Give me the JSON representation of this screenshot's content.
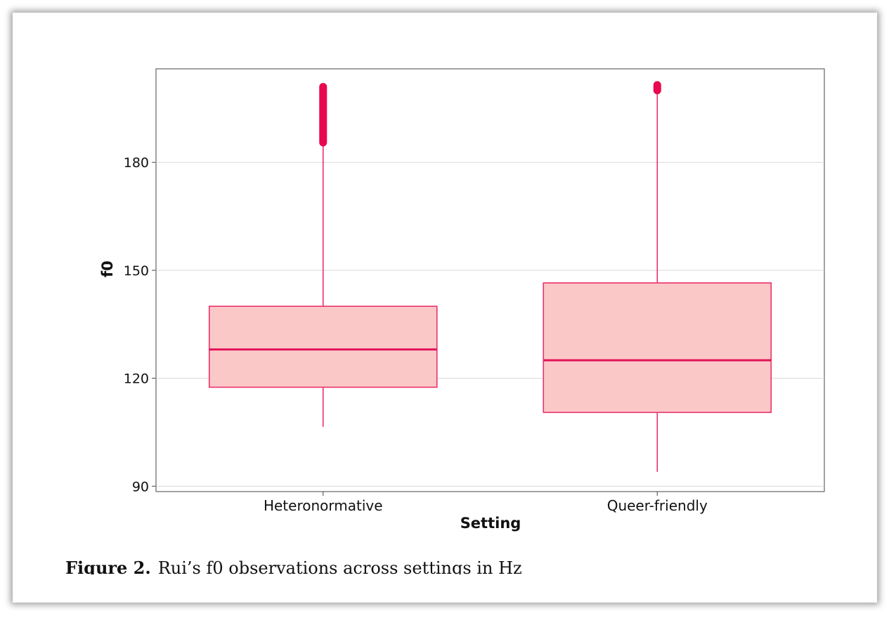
{
  "caption": {
    "label": "Figure 2.",
    "text": "Rui’s f0 observations across settings in Hz"
  },
  "chart_data": {
    "type": "boxplot",
    "title": "",
    "xlabel": "Setting",
    "ylabel": "f0",
    "ylim": [
      88.5,
      206
    ],
    "yticks": [
      90,
      120,
      150,
      180
    ],
    "grid": true,
    "categories": [
      "Heteronormative",
      "Queer-friendly"
    ],
    "boxes": [
      {
        "category": "Heteronormative",
        "whisker_low": 106.5,
        "q1": 117.5,
        "median": 128,
        "q3": 140,
        "whisker_high": 185.5,
        "outliers_range": [
          185.5,
          201
        ]
      },
      {
        "category": "Queer-friendly",
        "whisker_low": 94,
        "q1": 110.5,
        "median": 125,
        "q3": 146.5,
        "whisker_high": 200,
        "outliers_range": [
          200,
          201.5
        ]
      }
    ],
    "colors": {
      "box_fill": "#fbc8c8",
      "box_stroke": "#e8336b",
      "median": "#e0155a",
      "outlier": "#e8094f",
      "grid": "#d9d9d9",
      "axis": "#444444"
    }
  }
}
